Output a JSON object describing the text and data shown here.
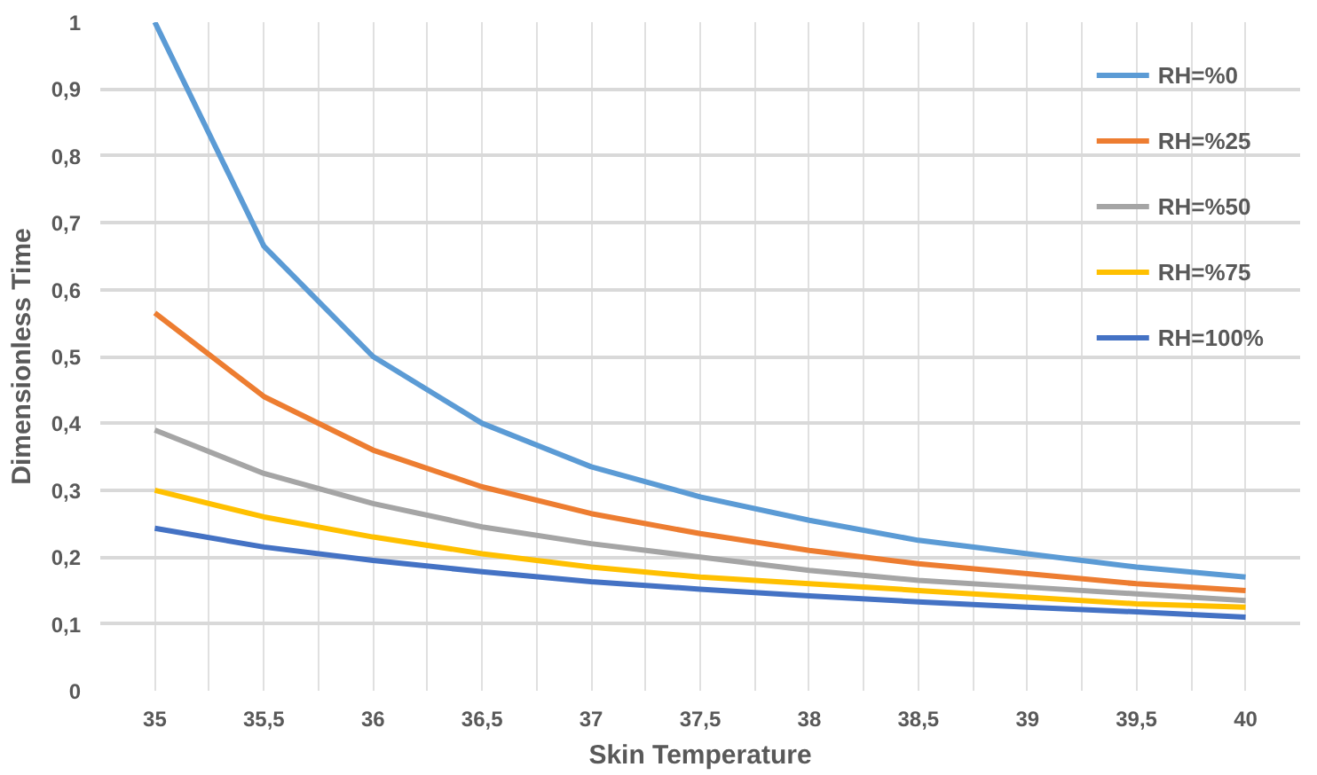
{
  "chart_data": {
    "type": "line",
    "xlabel": "Skin Temperature",
    "ylabel": "Dimensionless Time",
    "categories": [
      "35",
      "35,5",
      "36",
      "36,5",
      "37",
      "37,5",
      "38",
      "38,5",
      "39",
      "39,5",
      "40"
    ],
    "series": [
      {
        "name": "RH=%0",
        "color": "#5b9bd5",
        "values": [
          1,
          0.665,
          0.5,
          0.4,
          0.335,
          0.29,
          0.255,
          0.225,
          0.205,
          0.185,
          0.17
        ]
      },
      {
        "name": "RH=%25",
        "color": "#ed7d31",
        "values": [
          0.565,
          0.44,
          0.36,
          0.305,
          0.265,
          0.235,
          0.21,
          0.19,
          0.175,
          0.16,
          0.15
        ]
      },
      {
        "name": "RH=%50",
        "color": "#a5a5a5",
        "values": [
          0.39,
          0.325,
          0.28,
          0.245,
          0.22,
          0.2,
          0.18,
          0.165,
          0.155,
          0.145,
          0.135
        ]
      },
      {
        "name": "RH=%75",
        "color": "#ffc000",
        "values": [
          0.3,
          0.26,
          0.23,
          0.205,
          0.185,
          0.17,
          0.16,
          0.15,
          0.14,
          0.13,
          0.125
        ]
      },
      {
        "name": "RH=100%",
        "color": "#4472c4",
        "values": [
          0.243,
          0.215,
          0.195,
          0.178,
          0.163,
          0.152,
          0.142,
          0.133,
          0.125,
          0.118,
          0.11
        ]
      }
    ],
    "ylim": [
      0,
      1
    ],
    "yticks": [
      0,
      {
        "value": 0.1,
        "label": "0,1"
      },
      {
        "value": 0.2,
        "label": "0,2"
      },
      {
        "value": 0.3,
        "label": "0,3"
      },
      {
        "value": 0.4,
        "label": "0,4"
      },
      {
        "value": 0.5,
        "label": "0,5"
      },
      {
        "value": 0.6,
        "label": "0,6"
      },
      {
        "value": 0.7,
        "label": "0,7"
      },
      {
        "value": 0.8,
        "label": "0,8"
      },
      {
        "value": 0.9,
        "label": "0,9"
      },
      1
    ],
    "grid": true,
    "legend": "top right",
    "line_style": "solid",
    "marker": "none"
  }
}
